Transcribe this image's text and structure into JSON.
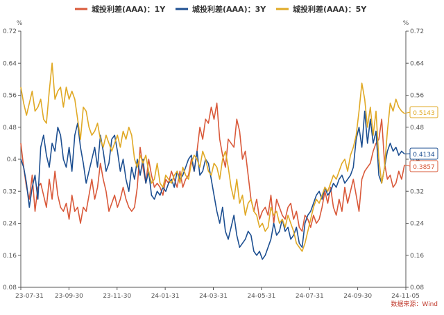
{
  "chart_data": {
    "type": "line",
    "title": "",
    "source": "数据来源：Wind",
    "y_unit_left": "%",
    "y_unit_right": "%",
    "ylim": [
      0.08,
      0.72
    ],
    "yticks": [
      "0.72",
      "0.64",
      "0.56",
      "0.48",
      "0.4",
      "0.32",
      "0.24",
      "0.16",
      "0.08"
    ],
    "xticks": [
      "23-07-31",
      "23-09-30",
      "23-11-30",
      "24-01-31",
      "24-03-31",
      "24-05-31",
      "24-07-31",
      "24-09-30",
      "24-11-05"
    ],
    "grid": false,
    "legend_position": "top",
    "series": [
      {
        "name": "城投利差(AAA)：1Y",
        "color": "#d9593a",
        "end_label": "0.3857",
        "values": [
          0.44,
          0.38,
          0.33,
          0.3,
          0.36,
          0.27,
          0.33,
          0.34,
          0.31,
          0.28,
          0.35,
          0.3,
          0.37,
          0.31,
          0.28,
          0.27,
          0.29,
          0.25,
          0.31,
          0.27,
          0.28,
          0.24,
          0.28,
          0.27,
          0.31,
          0.35,
          0.3,
          0.33,
          0.39,
          0.35,
          0.32,
          0.27,
          0.29,
          0.31,
          0.28,
          0.3,
          0.33,
          0.3,
          0.28,
          0.27,
          0.28,
          0.33,
          0.43,
          0.38,
          0.34,
          0.4,
          0.36,
          0.33,
          0.34,
          0.33,
          0.31,
          0.35,
          0.34,
          0.37,
          0.35,
          0.33,
          0.37,
          0.33,
          0.35,
          0.36,
          0.4,
          0.37,
          0.42,
          0.48,
          0.45,
          0.5,
          0.49,
          0.53,
          0.5,
          0.54,
          0.45,
          0.41,
          0.38,
          0.45,
          0.44,
          0.43,
          0.5,
          0.47,
          0.4,
          0.42,
          0.36,
          0.3,
          0.27,
          0.3,
          0.25,
          0.27,
          0.28,
          0.26,
          0.31,
          0.24,
          0.3,
          0.28,
          0.26,
          0.25,
          0.28,
          0.29,
          0.25,
          0.27,
          0.23,
          0.22,
          0.26,
          0.25,
          0.23,
          0.26,
          0.24,
          0.25,
          0.28,
          0.32,
          0.29,
          0.33,
          0.28,
          0.26,
          0.3,
          0.27,
          0.33,
          0.29,
          0.32,
          0.35,
          0.31,
          0.27,
          0.35,
          0.37,
          0.38,
          0.39,
          0.42,
          0.44,
          0.45,
          0.5,
          0.39,
          0.35,
          0.36,
          0.33,
          0.34,
          0.37,
          0.35,
          0.3857
        ]
      },
      {
        "name": "城投利差(AAA)：3Y",
        "color": "#1d4f91",
        "end_label": "0.4134",
        "values": [
          0.4,
          0.38,
          0.34,
          0.28,
          0.33,
          0.36,
          0.3,
          0.43,
          0.46,
          0.41,
          0.38,
          0.44,
          0.42,
          0.48,
          0.46,
          0.4,
          0.38,
          0.43,
          0.37,
          0.46,
          0.49,
          0.43,
          0.39,
          0.34,
          0.37,
          0.4,
          0.43,
          0.38,
          0.46,
          0.42,
          0.37,
          0.39,
          0.45,
          0.46,
          0.42,
          0.37,
          0.4,
          0.35,
          0.32,
          0.38,
          0.35,
          0.4,
          0.36,
          0.4,
          0.34,
          0.37,
          0.31,
          0.3,
          0.32,
          0.31,
          0.33,
          0.32,
          0.34,
          0.35,
          0.33,
          0.37,
          0.35,
          0.36,
          0.38,
          0.4,
          0.41,
          0.37,
          0.42,
          0.36,
          0.37,
          0.4,
          0.39,
          0.35,
          0.31,
          0.27,
          0.24,
          0.28,
          0.22,
          0.2,
          0.23,
          0.26,
          0.21,
          0.18,
          0.19,
          0.2,
          0.22,
          0.21,
          0.17,
          0.16,
          0.17,
          0.15,
          0.16,
          0.18,
          0.2,
          0.24,
          0.21,
          0.22,
          0.25,
          0.22,
          0.23,
          0.2,
          0.21,
          0.23,
          0.19,
          0.18,
          0.24,
          0.26,
          0.27,
          0.29,
          0.31,
          0.32,
          0.3,
          0.33,
          0.31,
          0.32,
          0.34,
          0.33,
          0.35,
          0.36,
          0.34,
          0.35,
          0.36,
          0.38,
          0.45,
          0.48,
          0.43,
          0.52,
          0.44,
          0.5,
          0.44,
          0.47,
          0.36,
          0.34,
          0.38,
          0.42,
          0.44,
          0.42,
          0.43,
          0.41,
          0.42,
          0.4134
        ]
      },
      {
        "name": "城投利差(AAA)：5Y",
        "color": "#e0a925",
        "end_label": "0.5143",
        "values": [
          0.58,
          0.54,
          0.51,
          0.54,
          0.57,
          0.52,
          0.53,
          0.55,
          0.5,
          0.49,
          0.57,
          0.64,
          0.55,
          0.57,
          0.58,
          0.53,
          0.58,
          0.55,
          0.57,
          0.55,
          0.5,
          0.45,
          0.53,
          0.52,
          0.48,
          0.46,
          0.47,
          0.49,
          0.45,
          0.43,
          0.46,
          0.44,
          0.42,
          0.44,
          0.46,
          0.43,
          0.47,
          0.45,
          0.48,
          0.46,
          0.4,
          0.38,
          0.41,
          0.39,
          0.41,
          0.37,
          0.34,
          0.35,
          0.39,
          0.34,
          0.33,
          0.36,
          0.35,
          0.34,
          0.36,
          0.37,
          0.34,
          0.38,
          0.36,
          0.35,
          0.39,
          0.41,
          0.4,
          0.38,
          0.42,
          0.4,
          0.37,
          0.36,
          0.39,
          0.38,
          0.35,
          0.4,
          0.42,
          0.38,
          0.33,
          0.3,
          0.35,
          0.29,
          0.31,
          0.26,
          0.29,
          0.3,
          0.27,
          0.26,
          0.23,
          0.24,
          0.22,
          0.23,
          0.28,
          0.26,
          0.27,
          0.24,
          0.25,
          0.23,
          0.26,
          0.24,
          0.22,
          0.19,
          0.18,
          0.17,
          0.19,
          0.22,
          0.25,
          0.28,
          0.3,
          0.29,
          0.31,
          0.33,
          0.32,
          0.34,
          0.36,
          0.35,
          0.37,
          0.39,
          0.4,
          0.37,
          0.41,
          0.43,
          0.46,
          0.52,
          0.59,
          0.55,
          0.48,
          0.53,
          0.46,
          0.52,
          0.4,
          0.34,
          0.38,
          0.47,
          0.54,
          0.52,
          0.55,
          0.53,
          0.52,
          0.5143
        ]
      }
    ]
  }
}
